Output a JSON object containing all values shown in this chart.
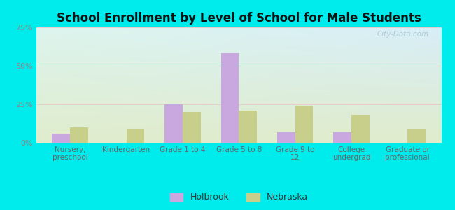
{
  "title": "School Enrollment by Level of School for Male Students",
  "categories": [
    "Nursery,\npreschool",
    "Kindergarten",
    "Grade 1 to 4",
    "Grade 5 to 8",
    "Grade 9 to\n12",
    "College\nundergrad",
    "Graduate or\nprofessional"
  ],
  "holbrook": [
    6,
    0,
    25,
    58,
    7,
    7,
    0
  ],
  "nebraska": [
    10,
    9,
    20,
    21,
    24,
    18,
    9
  ],
  "holbrook_color": "#c9a8e0",
  "nebraska_color": "#c8cf8a",
  "ylim": [
    0,
    75
  ],
  "yticks": [
    0,
    25,
    50,
    75
  ],
  "ytick_labels": [
    "0%",
    "25%",
    "50%",
    "75%"
  ],
  "background_color": "#00ecec",
  "plot_bg_topleft": "#ddf5ee",
  "plot_bg_topright": "#d8eef8",
  "plot_bg_bottom": "#e0eccc",
  "legend_holbrook": "Holbrook",
  "legend_nebraska": "Nebraska",
  "title_fontsize": 12,
  "bar_width": 0.32,
  "xlim_left": -0.6,
  "xlim_right": 6.6
}
